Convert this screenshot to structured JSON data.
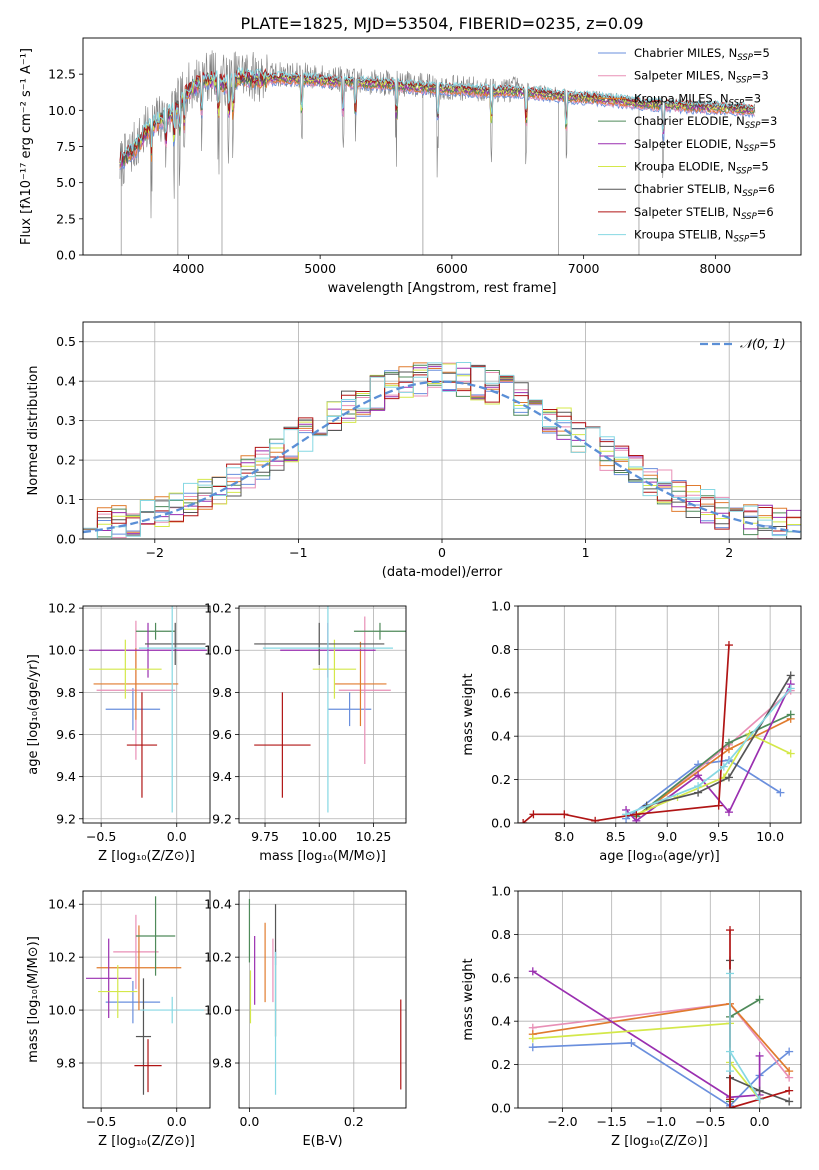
{
  "figure_title": "PLATE=1825, MJD=53504, FIBERID=0235, z=0.09",
  "chart_data": [
    {
      "id": "spectrum",
      "type": "line",
      "xlabel": "wavelength [Angstrom, rest frame]",
      "ylabel": "Flux [fλ10⁻¹⁷ erg cm⁻² s⁻¹ A⁻¹]",
      "xlim": [
        3200,
        8650
      ],
      "ylim": [
        0,
        15
      ],
      "xticks": [
        4000,
        5000,
        6000,
        7000,
        8000
      ],
      "yticks": [
        0.0,
        2.5,
        5.0,
        7.5,
        10.0,
        12.5
      ],
      "grid": false,
      "legend_position": "top-right",
      "legend": [
        {
          "label": "Chabrier MILES, N",
          "sub": "SSP",
          "suffix": "=5",
          "color": "#6a8fdd"
        },
        {
          "label": "Salpeter MILES, N",
          "sub": "SSP",
          "suffix": "=3",
          "color": "#e88fb6"
        },
        {
          "label": "Kroupa MILES, N",
          "sub": "SSP",
          "suffix": "=3",
          "color": "#e07b2e"
        },
        {
          "label": "Chabrier ELODIE, N",
          "sub": "SSP",
          "suffix": "=3",
          "color": "#4f8a5a"
        },
        {
          "label": "Salpeter ELODIE, N",
          "sub": "SSP",
          "suffix": "=5",
          "color": "#9a2fb0"
        },
        {
          "label": "Kroupa ELODIE, N",
          "sub": "SSP",
          "suffix": "=5",
          "color": "#d4e84a"
        },
        {
          "label": "Chabrier STELIB, N",
          "sub": "SSP",
          "suffix": "=6",
          "color": "#555555"
        },
        {
          "label": "Salpeter STELIB, N",
          "sub": "SSP",
          "suffix": "=6",
          "color": "#b01515"
        },
        {
          "label": "Kroupa STELIB, N",
          "sub": "SSP",
          "suffix": "=5",
          "color": "#86d8e3"
        }
      ],
      "observed": {
        "color": "#808080",
        "x": [
          3480,
          3600,
          3700,
          3800,
          3900,
          4000,
          4100,
          4200,
          4300,
          4400,
          4500,
          4700,
          4900,
          5100,
          5300,
          5500,
          5700,
          5900,
          6100,
          6300,
          6500,
          6700,
          6900,
          7100,
          7300,
          7500,
          7700,
          7900,
          8100,
          8300
        ],
        "y": [
          6.2,
          7.6,
          8.8,
          9.5,
          10.2,
          11.5,
          12.3,
          12.4,
          12.0,
          12.6,
          12.3,
          12.5,
          12.4,
          12.2,
          12.0,
          11.9,
          11.8,
          11.6,
          11.5,
          11.4,
          11.5,
          11.3,
          11.0,
          10.9,
          10.7,
          10.5,
          10.4,
          10.3,
          10.2,
          10.1
        ]
      },
      "model": {
        "x": [
          3480,
          3600,
          3700,
          3800,
          3900,
          4000,
          4100,
          4200,
          4300,
          4400,
          4500,
          4700,
          4900,
          5100,
          5300,
          5500,
          5700,
          5900,
          6100,
          6300,
          6500,
          6700,
          6900,
          7100,
          7300,
          7500,
          7700,
          7900,
          8100,
          8300
        ],
        "y": [
          6.4,
          7.4,
          8.7,
          9.4,
          10.0,
          11.3,
          12.0,
          12.1,
          11.7,
          12.3,
          12.1,
          12.2,
          12.1,
          12.0,
          11.9,
          11.8,
          11.6,
          11.5,
          11.4,
          11.3,
          11.3,
          11.1,
          10.9,
          10.8,
          10.6,
          10.4,
          10.3,
          10.2,
          10.1,
          10.0
        ]
      }
    },
    {
      "id": "residuals",
      "type": "line",
      "xlabel": "(data-model)/error",
      "ylabel": "Normed distribution",
      "xlim": [
        -2.5,
        2.5
      ],
      "ylim": [
        0,
        0.55
      ],
      "xticks": [
        -2,
        -1,
        0,
        1,
        2
      ],
      "yticks": [
        0.0,
        0.1,
        0.2,
        0.3,
        0.4,
        0.5
      ],
      "grid": true,
      "legend_position": "top-right",
      "reference": {
        "label": "𝒩(0, 1)",
        "color": "#5b8fd6",
        "mean": 0,
        "sigma": 1
      },
      "bin_width": 0.1
    },
    {
      "id": "age_vs_Z",
      "type": "scatter",
      "xlabel": "Z [log₁₀(Z/Z⊙)]",
      "ylabel": "age  [log₁₀(age/yr)]",
      "xlim": [
        -0.62,
        0.22
      ],
      "ylim": [
        9.18,
        10.21
      ],
      "xticks": [
        -0.5,
        0.0
      ],
      "yticks": [
        9.2,
        9.4,
        9.6,
        9.8,
        10.0,
        10.2
      ],
      "grid": true,
      "points": [
        {
          "color": "#6a8fdd",
          "x": -0.29,
          "y": 9.72,
          "xerr": 0.18,
          "yerr": 0.1
        },
        {
          "color": "#e88fb6",
          "x": -0.27,
          "y": 9.81,
          "xerr": 0.26,
          "yerr": 0.33
        },
        {
          "color": "#e07b2e",
          "x": -0.27,
          "y": 9.84,
          "xerr": 0.28,
          "yerr": 0.17
        },
        {
          "color": "#4f8a5a",
          "x": -0.14,
          "y": 10.09,
          "xerr": 0.13,
          "yerr": 0.04
        },
        {
          "color": "#9a2fb0",
          "x": -0.19,
          "y": 10.0,
          "xerr": 0.39,
          "yerr": 0.13
        },
        {
          "color": "#d4e84a",
          "x": -0.34,
          "y": 9.91,
          "xerr": 0.24,
          "yerr": 0.14
        },
        {
          "color": "#555555",
          "x": -0.01,
          "y": 10.03,
          "xerr": 0.2,
          "yerr": 0.1
        },
        {
          "color": "#b01515",
          "x": -0.23,
          "y": 9.55,
          "xerr": 0.1,
          "yerr": 0.25
        },
        {
          "color": "#86d8e3",
          "x": -0.03,
          "y": 10.01,
          "xerr": 0.22,
          "yerr": 0.78
        }
      ]
    },
    {
      "id": "age_vs_mass",
      "type": "scatter",
      "xlabel": "mass [log₁₀(M/M⊙)]",
      "ylabel": "",
      "xlim": [
        9.63,
        10.4
      ],
      "ylim": [
        9.18,
        10.21
      ],
      "xticks": [
        9.75,
        10.0,
        10.25
      ],
      "yticks": [
        9.2,
        9.4,
        9.6,
        9.8,
        10.0,
        10.2
      ],
      "grid": true,
      "points": [
        {
          "color": "#6a8fdd",
          "x": 10.14,
          "y": 9.72,
          "xerr": 0.1,
          "yerr": 0.08
        },
        {
          "color": "#e88fb6",
          "x": 10.21,
          "y": 9.81,
          "xerr": 0.12,
          "yerr": 0.35
        },
        {
          "color": "#e07b2e",
          "x": 10.19,
          "y": 9.84,
          "xerr": 0.12,
          "yerr": 0.2
        },
        {
          "color": "#4f8a5a",
          "x": 10.28,
          "y": 10.09,
          "xerr": 0.12,
          "yerr": 0.04
        },
        {
          "color": "#9a2fb0",
          "x": 10.04,
          "y": 10.0,
          "xerr": 0.22,
          "yerr": 0.13
        },
        {
          "color": "#d4e84a",
          "x": 10.07,
          "y": 9.91,
          "xerr": 0.1,
          "yerr": 0.14
        },
        {
          "color": "#555555",
          "x": 10.0,
          "y": 10.03,
          "xerr": 0.3,
          "yerr": 0.1
        },
        {
          "color": "#b01515",
          "x": 9.83,
          "y": 9.55,
          "xerr": 0.13,
          "yerr": 0.25
        },
        {
          "color": "#86d8e3",
          "x": 10.04,
          "y": 10.01,
          "xerr": 0.3,
          "yerr": 0.78
        }
      ]
    },
    {
      "id": "weight_vs_age",
      "type": "line",
      "xlabel": "age  [log₁₀(age/yr)]",
      "ylabel": "mass weight",
      "xlim": [
        7.55,
        10.3
      ],
      "ylim": [
        0,
        1.0
      ],
      "xticks": [
        8.0,
        8.5,
        9.0,
        9.5,
        10.0
      ],
      "yticks": [
        0.0,
        0.2,
        0.4,
        0.6,
        0.8,
        1.0
      ],
      "grid": true,
      "series": [
        {
          "color": "#6a8fdd",
          "x": [
            8.6,
            9.3,
            9.6,
            10.1
          ],
          "y": [
            0.02,
            0.27,
            0.29,
            0.14
          ]
        },
        {
          "color": "#e88fb6",
          "x": [
            8.7,
            9.6,
            10.2
          ],
          "y": [
            0.03,
            0.36,
            0.61
          ]
        },
        {
          "color": "#e07b2e",
          "x": [
            8.7,
            9.6,
            10.2
          ],
          "y": [
            0.03,
            0.34,
            0.48
          ]
        },
        {
          "color": "#4f8a5a",
          "x": [
            8.7,
            9.6,
            10.2
          ],
          "y": [
            0.03,
            0.37,
            0.5
          ]
        },
        {
          "color": "#9a2fb0",
          "x": [
            8.6,
            8.7,
            9.3,
            9.6,
            10.2
          ],
          "y": [
            0.06,
            0.01,
            0.22,
            0.05,
            0.64
          ]
        },
        {
          "color": "#d4e84a",
          "x": [
            8.7,
            9.1,
            9.55,
            9.8,
            10.2
          ],
          "y": [
            0.04,
            0.12,
            0.21,
            0.41,
            0.32
          ]
        },
        {
          "color": "#555555",
          "x": [
            8.8,
            9.3,
            9.6,
            10.2
          ],
          "y": [
            0.08,
            0.14,
            0.21,
            0.68
          ]
        },
        {
          "color": "#b01515",
          "x": [
            7.6,
            7.7,
            8.0,
            8.3,
            8.7,
            9.5,
            9.6
          ],
          "y": [
            0.0,
            0.04,
            0.04,
            0.01,
            0.04,
            0.08,
            0.82
          ]
        },
        {
          "color": "#86d8e3",
          "x": [
            8.6,
            9.3,
            9.55,
            10.2
          ],
          "y": [
            0.04,
            0.17,
            0.26,
            0.62
          ]
        }
      ]
    },
    {
      "id": "mass_vs_Z",
      "type": "scatter",
      "xlabel": "Z [log₁₀(Z/Z⊙)]",
      "ylabel": "mass [log₁₀(M/M⊙)]",
      "xlim": [
        -0.62,
        0.22
      ],
      "ylim": [
        9.63,
        10.45
      ],
      "xticks": [
        -0.5,
        0.0
      ],
      "yticks": [
        9.8,
        10.0,
        10.2,
        10.4
      ],
      "grid": true,
      "points": [
        {
          "color": "#6a8fdd",
          "x": -0.29,
          "y": 10.03,
          "xerr": 0.18,
          "yerr": 0.08
        },
        {
          "color": "#e88fb6",
          "x": -0.27,
          "y": 10.22,
          "xerr": 0.15,
          "yerr": 0.14
        },
        {
          "color": "#e07b2e",
          "x": -0.25,
          "y": 10.16,
          "xerr": 0.28,
          "yerr": 0.16
        },
        {
          "color": "#4f8a5a",
          "x": -0.14,
          "y": 10.28,
          "xerr": 0.13,
          "yerr": 0.15
        },
        {
          "color": "#9a2fb0",
          "x": -0.45,
          "y": 10.12,
          "xerr": 0.15,
          "yerr": 0.15
        },
        {
          "color": "#d4e84a",
          "x": -0.39,
          "y": 10.07,
          "xerr": 0.13,
          "yerr": 0.1
        },
        {
          "color": "#555555",
          "x": -0.22,
          "y": 9.9,
          "xerr": 0.05,
          "yerr": 0.22
        },
        {
          "color": "#b01515",
          "x": -0.19,
          "y": 9.79,
          "xerr": 0.09,
          "yerr": 0.1
        },
        {
          "color": "#86d8e3",
          "x": -0.03,
          "y": 10.0,
          "xerr": 0.21,
          "yerr": 0.05
        }
      ]
    },
    {
      "id": "mass_vs_ebv",
      "type": "scatter",
      "xlabel": "E(B-V)",
      "ylabel": "",
      "xlim": [
        -0.02,
        0.3
      ],
      "ylim": [
        9.63,
        10.45
      ],
      "xticks": [
        0.0,
        0.2
      ],
      "yticks": [
        9.8,
        10.0,
        10.2,
        10.4
      ],
      "grid": true,
      "points": [
        {
          "color": "#6a8fdd",
          "x": 0.05,
          "y": 10.2,
          "xerr": 0.0,
          "yerr": 0.03
        },
        {
          "color": "#e88fb6",
          "x": 0.045,
          "y": 10.15,
          "xerr": 0.0,
          "yerr": 0.12
        },
        {
          "color": "#e07b2e",
          "x": 0.03,
          "y": 10.18,
          "xerr": 0.0,
          "yerr": 0.15
        },
        {
          "color": "#4f8a5a",
          "x": 0.0,
          "y": 10.3,
          "xerr": 0.0,
          "yerr": 0.12
        },
        {
          "color": "#9a2fb0",
          "x": 0.01,
          "y": 10.15,
          "xerr": 0.0,
          "yerr": 0.13
        },
        {
          "color": "#d4e84a",
          "x": 0.002,
          "y": 10.05,
          "xerr": 0.0,
          "yerr": 0.1
        },
        {
          "color": "#555555",
          "x": 0.05,
          "y": 10.15,
          "xerr": 0.0,
          "yerr": 0.25
        },
        {
          "color": "#b01515",
          "x": 0.29,
          "y": 9.87,
          "xerr": 0.0,
          "yerr": 0.17
        },
        {
          "color": "#86d8e3",
          "x": 0.05,
          "y": 9.95,
          "xerr": 0.0,
          "yerr": 0.27
        }
      ]
    },
    {
      "id": "weight_vs_Z",
      "type": "line",
      "xlabel": "Z [log₁₀(Z/Z⊙)]",
      "ylabel": "mass weight",
      "xlim": [
        -2.45,
        0.42
      ],
      "ylim": [
        0,
        1.0
      ],
      "xticks": [
        -2.0,
        -1.5,
        -1.0,
        -0.5,
        0.0
      ],
      "yticks": [
        0.0,
        0.2,
        0.4,
        0.6,
        0.8,
        1.0
      ],
      "grid": true,
      "series": [
        {
          "color": "#6a8fdd",
          "x": [
            -2.3,
            -1.3,
            -0.3,
            0.0,
            0.3
          ],
          "y": [
            0.28,
            0.3,
            0.01,
            0.15,
            0.26
          ]
        },
        {
          "color": "#e88fb6",
          "x": [
            -2.3,
            -0.3,
            0.3
          ],
          "y": [
            0.37,
            0.48,
            0.14
          ]
        },
        {
          "color": "#e07b2e",
          "x": [
            -2.3,
            -0.3,
            0.3
          ],
          "y": [
            0.34,
            0.48,
            0.17
          ]
        },
        {
          "color": "#4f8a5a",
          "x": [
            -0.3,
            -0.3,
            0.0
          ],
          "y": [
            0.03,
            0.42,
            0.5
          ]
        },
        {
          "color": "#9a2fb0",
          "x": [
            -2.3,
            -0.3,
            0.0,
            0.0
          ],
          "y": [
            0.63,
            0.05,
            0.06,
            0.24
          ]
        },
        {
          "color": "#d4e84a",
          "x": [
            -2.3,
            -0.3,
            -0.3,
            0.0
          ],
          "y": [
            0.32,
            0.39,
            0.21,
            0.04
          ]
        },
        {
          "color": "#555555",
          "x": [
            -0.3,
            -0.3,
            0.0,
            0.3
          ],
          "y": [
            0.68,
            0.14,
            0.08,
            0.03
          ]
        },
        {
          "color": "#b01515",
          "x": [
            -0.3,
            -0.3,
            -0.3,
            0.0,
            0.3
          ],
          "y": [
            0.82,
            0.04,
            0.0,
            0.04,
            0.08
          ]
        },
        {
          "color": "#86d8e3",
          "x": [
            -0.3,
            -0.3,
            -0.3,
            0.0
          ],
          "y": [
            0.62,
            0.17,
            0.26,
            0.04
          ]
        }
      ]
    }
  ]
}
